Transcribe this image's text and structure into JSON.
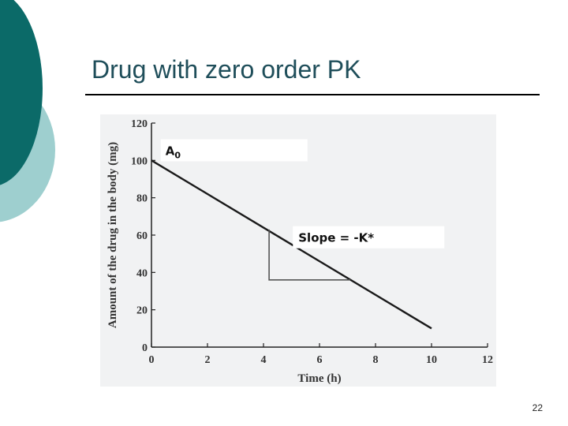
{
  "slide": {
    "title": "Drug with zero order PK",
    "page_number": "22",
    "colors": {
      "teal_dark": "#0b6a68",
      "teal_light": "#9ecfcf",
      "title_text": "#1f4e5a"
    }
  },
  "chart_data": {
    "type": "line",
    "title": "",
    "xlabel": "Time (h)",
    "ylabel": "Amount of  the drug in the body (mg)",
    "xlim": [
      0,
      12
    ],
    "ylim": [
      0,
      120
    ],
    "x_ticks": [
      0,
      2,
      4,
      6,
      8,
      10,
      12
    ],
    "y_ticks": [
      0,
      20,
      40,
      60,
      80,
      100,
      120
    ],
    "series": [
      {
        "x": [
          0,
          10
        ],
        "y": [
          100,
          10
        ]
      }
    ],
    "slope_triangle": {
      "x": [
        4.2,
        7.1
      ],
      "y": [
        63,
        36
      ]
    },
    "annotations": [
      {
        "id": "a0",
        "text": "A",
        "subscript": "0",
        "x": 0.5,
        "y": 105
      },
      {
        "id": "slope",
        "text": "Slope = -K*",
        "x": 5.5,
        "y": 58
      }
    ],
    "grid": false,
    "legend": "none"
  }
}
